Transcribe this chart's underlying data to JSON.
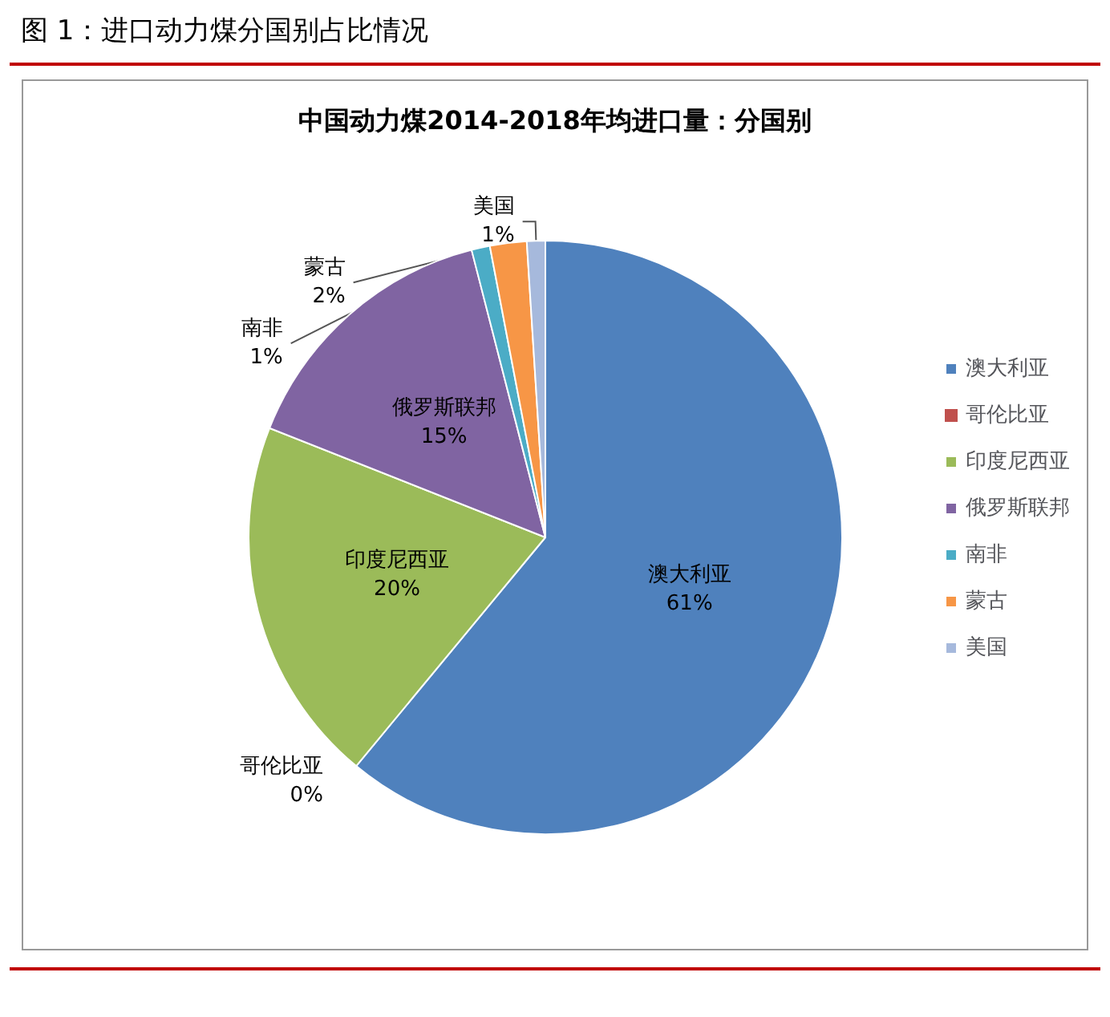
{
  "chart_data": {
    "type": "pie",
    "title": "图 1：进口动力煤分国别占比情况",
    "subtitle": "中国动力煤2014-2018年均进口量：分国别",
    "categories": [
      "澳大利亚",
      "哥伦比亚",
      "印度尼西亚",
      "俄罗斯联邦",
      "南非",
      "蒙古",
      "美国"
    ],
    "values": [
      61,
      0,
      20,
      15,
      1,
      2,
      1
    ],
    "value_labels": [
      "61%",
      "0%",
      "20%",
      "15%",
      "1%",
      "2%",
      "1%"
    ],
    "colors": [
      "#4f81bd",
      "#c0504d",
      "#9bbb59",
      "#8064a2",
      "#4bacc6",
      "#f79646",
      "#a6b9dc"
    ],
    "legend": "right"
  }
}
